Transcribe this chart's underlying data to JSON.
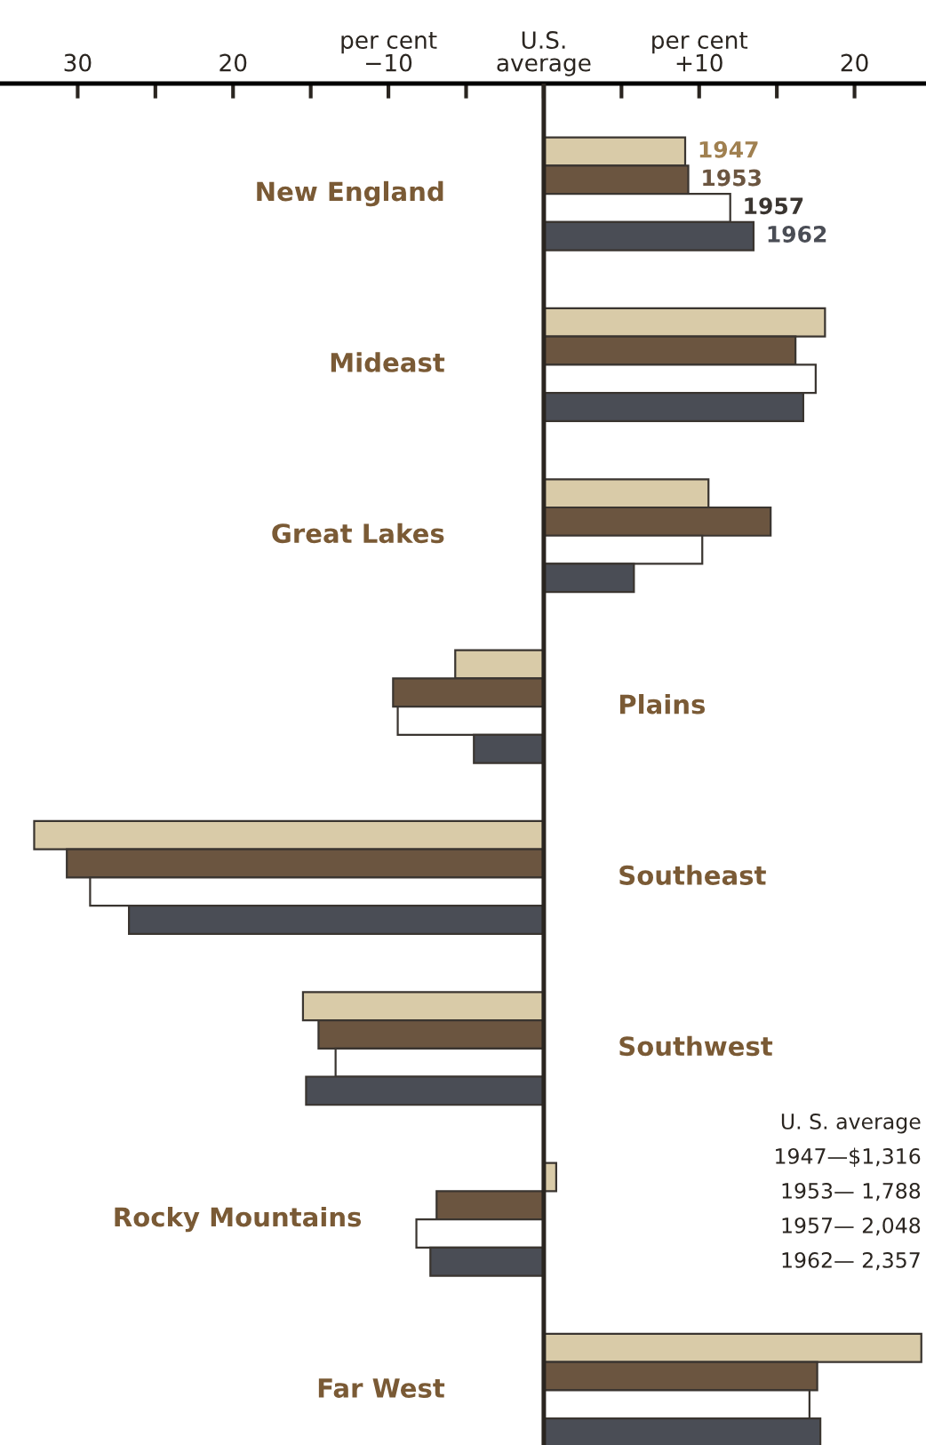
{
  "chart_data": {
    "type": "bar",
    "orientation": "horizontal",
    "categories": [
      "New England",
      "Mideast",
      "Great Lakes",
      "Plains",
      "Southeast",
      "Southwest",
      "Rocky Mountains",
      "Far West"
    ],
    "series": [
      {
        "name": "1947",
        "color": "#d9cba8",
        "values": [
          9.1,
          18.1,
          10.6,
          -5.7,
          -32.8,
          -15.5,
          0.8,
          24.3
        ]
      },
      {
        "name": "1953",
        "color": "#6b5540",
        "values": [
          9.3,
          16.2,
          14.6,
          -9.7,
          -30.7,
          -14.5,
          -6.9,
          17.6
        ]
      },
      {
        "name": "1957",
        "color": "#ffffff",
        "values": [
          12.0,
          17.5,
          10.2,
          -9.4,
          -29.2,
          -13.4,
          -8.2,
          17.1
        ]
      },
      {
        "name": "1962",
        "color": "#4a4d55",
        "values": [
          13.5,
          16.7,
          5.8,
          -4.5,
          -26.7,
          -15.3,
          -7.3,
          17.8
        ]
      }
    ],
    "xlim": [
      -35,
      24.6
    ],
    "xticks": [
      {
        "value": -30,
        "label": "30"
      },
      {
        "value": -25,
        "label": null
      },
      {
        "value": -20,
        "label": "20"
      },
      {
        "value": -15,
        "label": null
      },
      {
        "value": -10,
        "label": "per cent\n−10"
      },
      {
        "value": -5,
        "label": null
      },
      {
        "value": 0,
        "label": "U.S.\naverage"
      },
      {
        "value": 5,
        "label": null
      },
      {
        "value": 10,
        "label": "per cent\n+10"
      },
      {
        "value": 15,
        "label": null
      },
      {
        "value": 20,
        "label": "20"
      }
    ],
    "ref_lines": [
      {
        "axis": "x",
        "value": 0
      }
    ],
    "annotations": [
      "U. S. average",
      "1947—$1,316",
      "1953— 1,788",
      "1957— 2,048",
      "1962— 2,357"
    ],
    "legend": false,
    "grid": false
  }
}
